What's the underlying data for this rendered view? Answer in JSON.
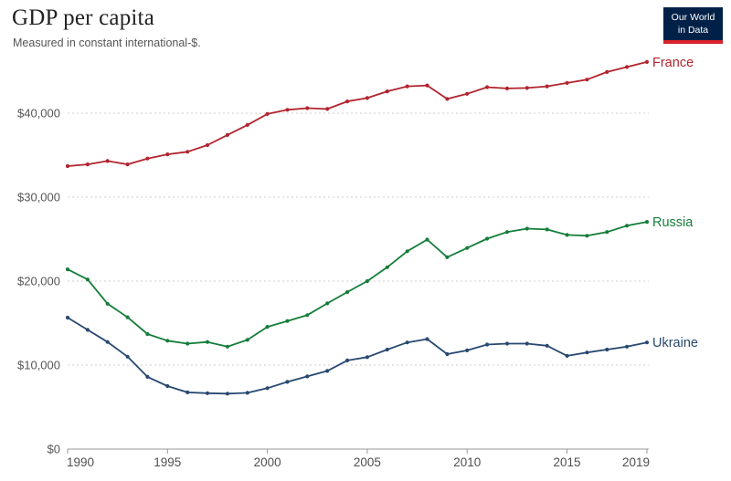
{
  "header": {
    "title": "GDP per capita",
    "subtitle": "Measured in constant international-$.",
    "logo": {
      "line1": "Our World",
      "line2": "in Data",
      "bg": "#002147",
      "accent": "#d8232a"
    }
  },
  "chart_data": {
    "type": "line",
    "title": "GDP per capita",
    "subtitle": "Measured in constant international-$.",
    "xlabel": "",
    "ylabel": "",
    "x": [
      1990,
      1991,
      1992,
      1993,
      1994,
      1995,
      1996,
      1997,
      1998,
      1999,
      2000,
      2001,
      2002,
      2003,
      2004,
      2005,
      2006,
      2007,
      2008,
      2009,
      2010,
      2011,
      2012,
      2013,
      2014,
      2015,
      2016,
      2017,
      2018,
      2019
    ],
    "series": [
      {
        "name": "France",
        "color": "#b1242e",
        "values": [
          33700,
          33900,
          34300,
          33900,
          34600,
          35100,
          35400,
          36200,
          37400,
          38600,
          39900,
          40400,
          40600,
          40500,
          41400,
          41800,
          42600,
          43200,
          43300,
          41700,
          42300,
          43100,
          42950,
          43000,
          43200,
          43600,
          44000,
          44900,
          45500,
          46100
        ]
      },
      {
        "name": "Russia",
        "color": "#157d3a",
        "values": [
          21400,
          20200,
          17300,
          15700,
          13700,
          12900,
          12550,
          12750,
          12200,
          13000,
          14550,
          15250,
          15950,
          17350,
          18700,
          20000,
          21650,
          23550,
          24950,
          22850,
          23950,
          25050,
          25850,
          26250,
          26150,
          25500,
          25400,
          25850,
          26600,
          27050
        ]
      },
      {
        "name": "Ukraine",
        "color": "#274870",
        "values": [
          15650,
          14200,
          12750,
          11000,
          8600,
          7500,
          6750,
          6650,
          6600,
          6700,
          7250,
          8000,
          8650,
          9300,
          10550,
          10950,
          11850,
          12700,
          13100,
          11300,
          11750,
          12450,
          12550,
          12550,
          12300,
          11100,
          11500,
          11850,
          12200,
          12700
        ]
      }
    ],
    "ylim": [
      0,
      46500
    ],
    "yticks": [
      0,
      10000,
      20000,
      30000,
      40000
    ],
    "ytick_labels": [
      "$0",
      "$10,000",
      "$20,000",
      "$30,000",
      "$40,000"
    ],
    "xticks": [
      1990,
      1995,
      2000,
      2005,
      2010,
      2015,
      2019
    ],
    "grid": "horizontal-dashed",
    "legend_position": "end-of-line-labels",
    "grid_color": "#cfcfcf",
    "axis_color": "#999999"
  }
}
